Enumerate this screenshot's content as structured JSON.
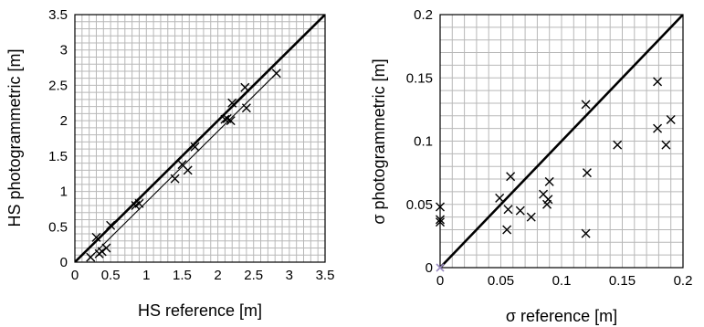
{
  "chart_data": [
    {
      "type": "scatter",
      "title": "",
      "xlabel": "HS reference [m]",
      "ylabel": "HS photogrammetric [m]",
      "xlim": [
        0,
        3.5
      ],
      "ylim": [
        0,
        3.5
      ],
      "xticks": [
        "0",
        "0.5",
        "1",
        "1.5",
        "2",
        "2.5",
        "3",
        "3.5"
      ],
      "yticks": [
        "0",
        "0.5",
        "1",
        "1.5",
        "2",
        "2.5",
        "3",
        "3.5"
      ],
      "grid": true,
      "minor_grid_step": 0.1,
      "marker": "x",
      "lines": [
        {
          "type": "identity",
          "points": [
            [
              0,
              0
            ],
            [
              3.5,
              3.5
            ]
          ],
          "width": "thick"
        },
        {
          "type": "fit",
          "points": [
            [
              0.2,
              0.05
            ],
            [
              2.85,
              2.7
            ]
          ],
          "width": "thin"
        }
      ],
      "points": [
        [
          0.22,
          0.07
        ],
        [
          0.3,
          0.35
        ],
        [
          0.34,
          0.12
        ],
        [
          0.38,
          0.15
        ],
        [
          0.44,
          0.2
        ],
        [
          0.5,
          0.52
        ],
        [
          0.85,
          0.8
        ],
        [
          0.9,
          0.83
        ],
        [
          1.4,
          1.18
        ],
        [
          1.5,
          1.38
        ],
        [
          1.58,
          1.3
        ],
        [
          1.68,
          1.63
        ],
        [
          2.1,
          2.02
        ],
        [
          2.13,
          2.03
        ],
        [
          2.18,
          2.0
        ],
        [
          2.2,
          2.25
        ],
        [
          2.38,
          2.47
        ],
        [
          2.4,
          2.18
        ],
        [
          2.82,
          2.67
        ]
      ]
    },
    {
      "type": "scatter",
      "title": "",
      "xlabel": "σ reference [m]",
      "ylabel": "σ photogrammetric [m]",
      "xlim": [
        0,
        0.2
      ],
      "ylim": [
        0,
        0.2
      ],
      "xticks": [
        "0",
        "0.05",
        "0.1",
        "0.15",
        "0.2"
      ],
      "yticks": [
        "0",
        "0.05",
        "0.1",
        "0.15",
        "0.2"
      ],
      "grid": true,
      "minor_grid_step": 0.01,
      "marker": "x",
      "lines": [
        {
          "type": "identity",
          "points": [
            [
              0,
              0
            ],
            [
              0.2,
              0.2
            ]
          ],
          "width": "thick"
        }
      ],
      "origin_marker_color": "#9a8ac0",
      "points": [
        [
          0.0,
          0.048
        ],
        [
          0.0,
          0.038
        ],
        [
          0.0,
          0.036
        ],
        [
          0.049,
          0.055
        ],
        [
          0.055,
          0.03
        ],
        [
          0.056,
          0.046
        ],
        [
          0.058,
          0.072
        ],
        [
          0.066,
          0.045
        ],
        [
          0.075,
          0.04
        ],
        [
          0.085,
          0.058
        ],
        [
          0.088,
          0.05
        ],
        [
          0.089,
          0.054
        ],
        [
          0.09,
          0.068
        ],
        [
          0.12,
          0.129
        ],
        [
          0.12,
          0.027
        ],
        [
          0.121,
          0.075
        ],
        [
          0.146,
          0.097
        ],
        [
          0.179,
          0.147
        ],
        [
          0.179,
          0.11
        ],
        [
          0.186,
          0.097
        ],
        [
          0.19,
          0.117
        ]
      ]
    }
  ]
}
